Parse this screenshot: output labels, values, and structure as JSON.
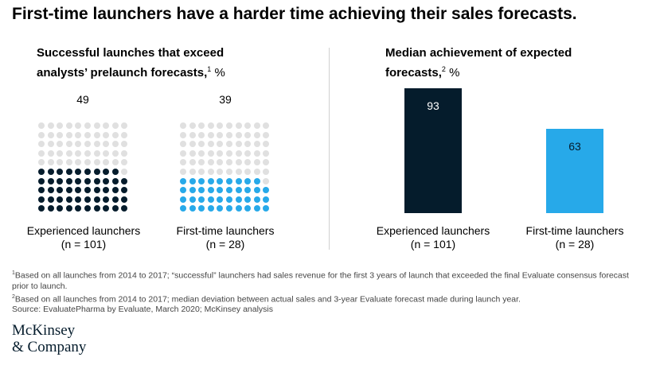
{
  "title": "First-time launchers have a harder time achieving their sales forecasts.",
  "left_subtitle": {
    "line1": "Successful launches that exceed",
    "line2": "analysts’ prelaunch forecasts,",
    "note": "1",
    "unit": "%"
  },
  "right_subtitle": {
    "line1": "Median achievement of expected",
    "line2": "forecasts,",
    "note": "2",
    "unit": "%"
  },
  "colors": {
    "dark": "#051c2c",
    "light_blue": "#27a9e9",
    "gray_dot": "#e0e0e0"
  },
  "chart_data": [
    {
      "type": "waffle",
      "grid": {
        "rows": 10,
        "cols": 10
      },
      "categories": [
        {
          "label": "Experienced launchers",
          "n": "(n = 101)",
          "value": 49,
          "value_label": "49",
          "color": "#051c2c"
        },
        {
          "label": "First-time launchers",
          "n": "(n = 28)",
          "value": 39,
          "value_label": "39",
          "color": "#27a9e9"
        }
      ]
    },
    {
      "type": "bar",
      "categories": [
        "Experienced launchers",
        "First-time launchers"
      ],
      "n_labels": [
        "(n = 101)",
        "(n = 28)"
      ],
      "values": [
        93,
        63
      ],
      "value_labels": [
        "93",
        "63"
      ],
      "colors": [
        "#051c2c",
        "#27a9e9"
      ],
      "ylim": [
        0,
        100
      ]
    }
  ],
  "footnotes": [
    {
      "mark": "1",
      "text": "Based on all launches from 2014 to 2017; “successful” launchers had sales revenue for the first 3 years of launch that exceeded the final Evaluate consensus forecast prior to launch."
    },
    {
      "mark": "2",
      "text": "Based on all launches from 2014 to 2017; median deviation between actual sales and 3-year Evaluate forecast made during launch year."
    },
    {
      "mark": "",
      "text": "Source: EvaluatePharma by Evaluate, March 2020; McKinsey analysis"
    }
  ],
  "logo": {
    "line1": "McKinsey",
    "line2": "& Company"
  }
}
